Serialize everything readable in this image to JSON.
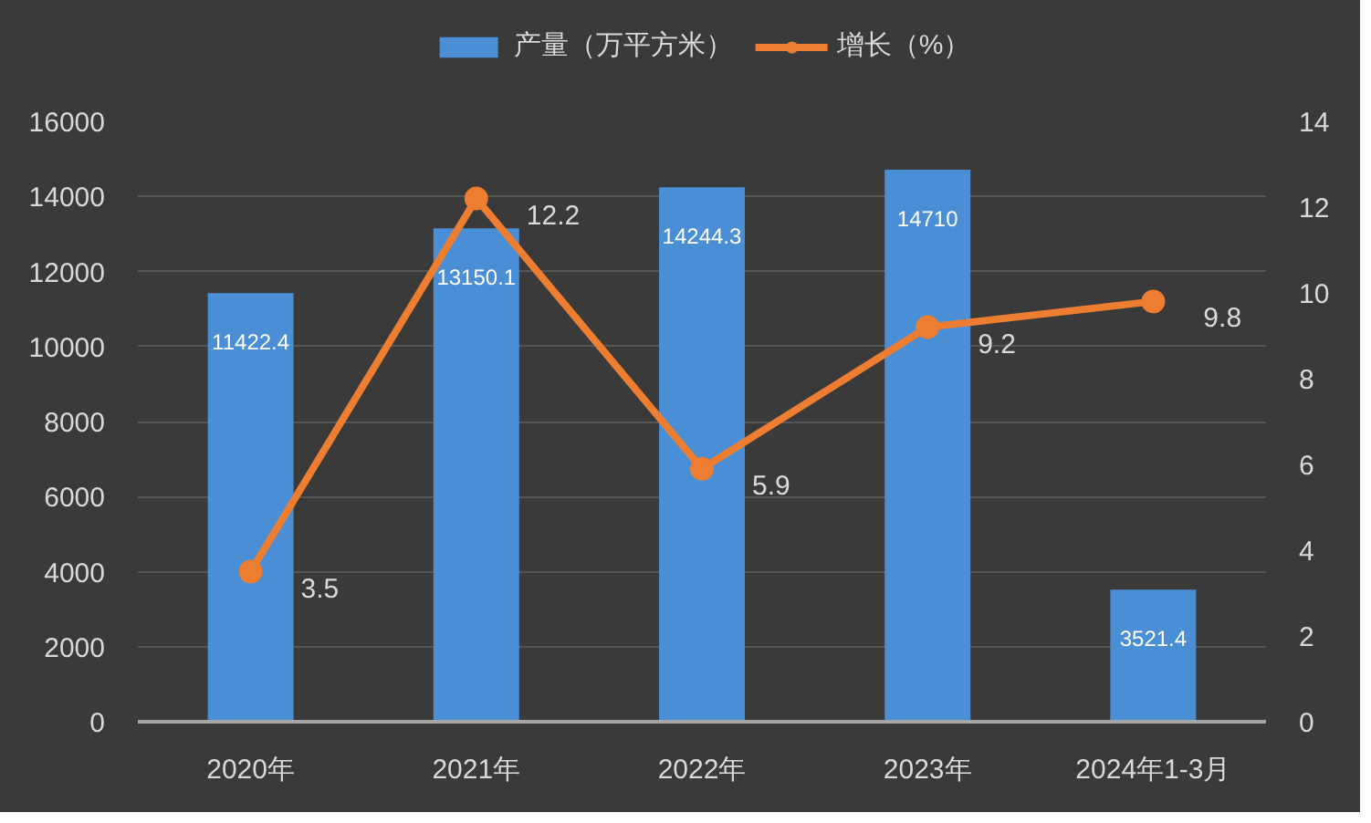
{
  "chart_data": {
    "type": "bar",
    "categories": [
      "2020年",
      "2021年",
      "2022年",
      "2023年",
      "2024年1-3月"
    ],
    "series": [
      {
        "name": "产量（万平方米）",
        "color": "#4a8fd6",
        "values": [
          11422.4,
          13150.1,
          14244.3,
          14710,
          3521.4
        ]
      },
      {
        "name": "增长（%）",
        "type": "line",
        "axis": "y2",
        "color": "#ed7d31",
        "values": [
          3.5,
          12.2,
          5.9,
          9.2,
          9.8
        ]
      }
    ],
    "ylim": [
      0,
      16000
    ],
    "yticks": [
      0,
      2000,
      4000,
      6000,
      8000,
      10000,
      12000,
      14000,
      16000
    ],
    "y2lim": [
      0,
      14
    ],
    "y2ticks": [
      0,
      2,
      4,
      6,
      8,
      10,
      12,
      14
    ],
    "grid": "y",
    "legend": "top",
    "marker": "circle",
    "data_labels": true
  }
}
